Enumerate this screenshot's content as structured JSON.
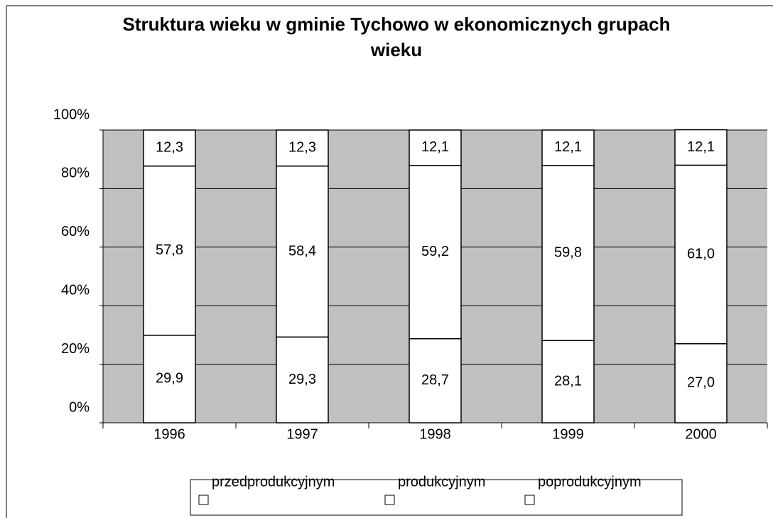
{
  "chart_data": {
    "type": "stacked_bar",
    "title": "Struktura wieku w gminie Tychowo w ekonomicznych grupach wieku",
    "categories": [
      "1996",
      "1997",
      "1998",
      "1999",
      "2000"
    ],
    "series": [
      {
        "name": "przedprodukcyjnym",
        "color": "#ffffff",
        "values": [
          29.9,
          29.3,
          28.7,
          28.1,
          27.0
        ],
        "value_labels": [
          "29,9",
          "29,3",
          "28,7",
          "28,1",
          "27,0"
        ]
      },
      {
        "name": "produkcyjnym",
        "color": "#ffffff",
        "values": [
          57.8,
          58.4,
          59.2,
          59.8,
          61.0
        ],
        "value_labels": [
          "57,8",
          "58,4",
          "59,2",
          "59,8",
          "61,0"
        ]
      },
      {
        "name": "poprodukcyjnym",
        "color": "#ffffff",
        "values": [
          12.3,
          12.3,
          12.1,
          12.1,
          12.1
        ],
        "value_labels": [
          "12,3",
          "12,3",
          "12,1",
          "12,1",
          "12,1"
        ]
      }
    ],
    "ylim": [
      0,
      100
    ],
    "yticks": [
      {
        "value": 0,
        "label": "0%"
      },
      {
        "value": 20,
        "label": "20%"
      },
      {
        "value": 40,
        "label": "40%"
      },
      {
        "value": 60,
        "label": "60%"
      },
      {
        "value": 80,
        "label": "80%"
      },
      {
        "value": 100,
        "label": "100%"
      }
    ],
    "grid": true,
    "plot_background": "#c0c0c0",
    "legend": "bottom"
  }
}
